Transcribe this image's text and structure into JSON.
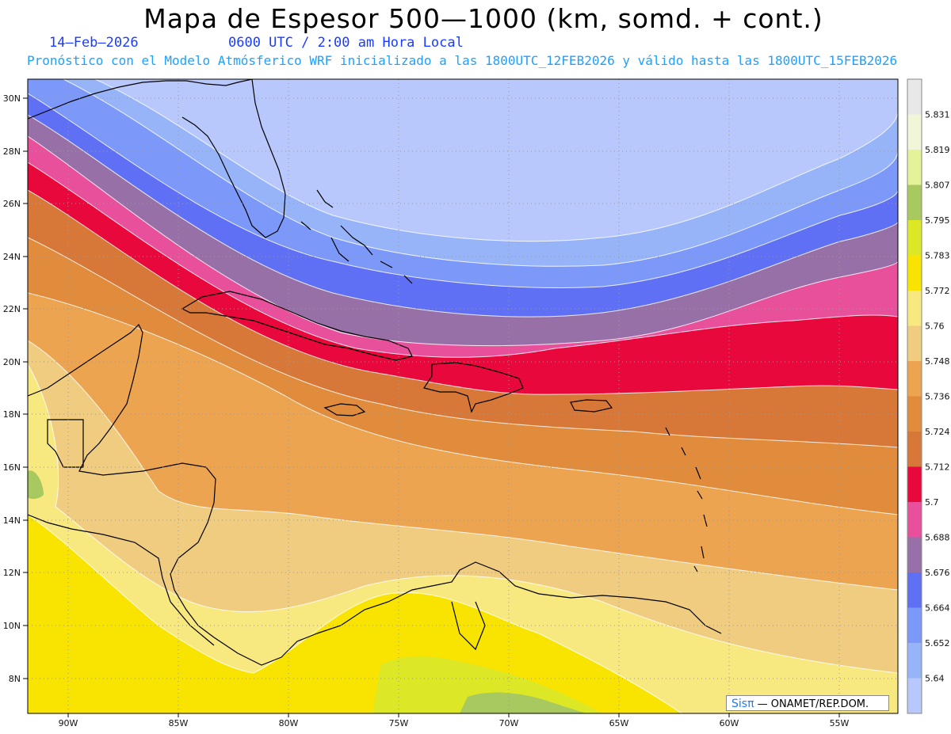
{
  "header": {
    "title": "Mapa de Espesor 500—1000 (km, somd. + cont.)",
    "date": "14—Feb—2026",
    "time": "0600 UTC / 2:00 am Hora Local",
    "description": "Pronóstico con el Modelo Atmósferico WRF inicializado a las 1800UTC_12FEB2026 y válido hasta las  1800UTC_15FEB2026"
  },
  "map": {
    "lat_labels": [
      "30N",
      "28N",
      "26N",
      "24N",
      "22N",
      "20N",
      "18N",
      "16N",
      "14N",
      "12N",
      "10N",
      "8N"
    ],
    "lon_labels": [
      "90W",
      "85W",
      "80W",
      "75W",
      "70W",
      "65W",
      "60W",
      "55W"
    ],
    "credit": {
      "brand": "Sisπ",
      "text": " — ONAMET/REP.DOM."
    }
  },
  "colorbar": {
    "labels": [
      "5.831",
      "5.819",
      "5.807",
      "5.795",
      "5.783",
      "5.772",
      "5.76",
      "5.748",
      "5.736",
      "5.724",
      "5.712",
      "5.7",
      "5.688",
      "5.676",
      "5.664",
      "5.652",
      "5.64"
    ],
    "colors_top_to_bottom": [
      "#e8e8e8",
      "#f2f6d8",
      "#e4f29a",
      "#a8c860",
      "#dce826",
      "#f8e400",
      "#f8e880",
      "#f0cc80",
      "#eca450",
      "#e08c3c",
      "#d87838",
      "#e8083c",
      "#e8509c",
      "#9870a8",
      "#6070f4",
      "#7c98f8",
      "#98b4f8",
      "#b8c8fc"
    ]
  }
}
